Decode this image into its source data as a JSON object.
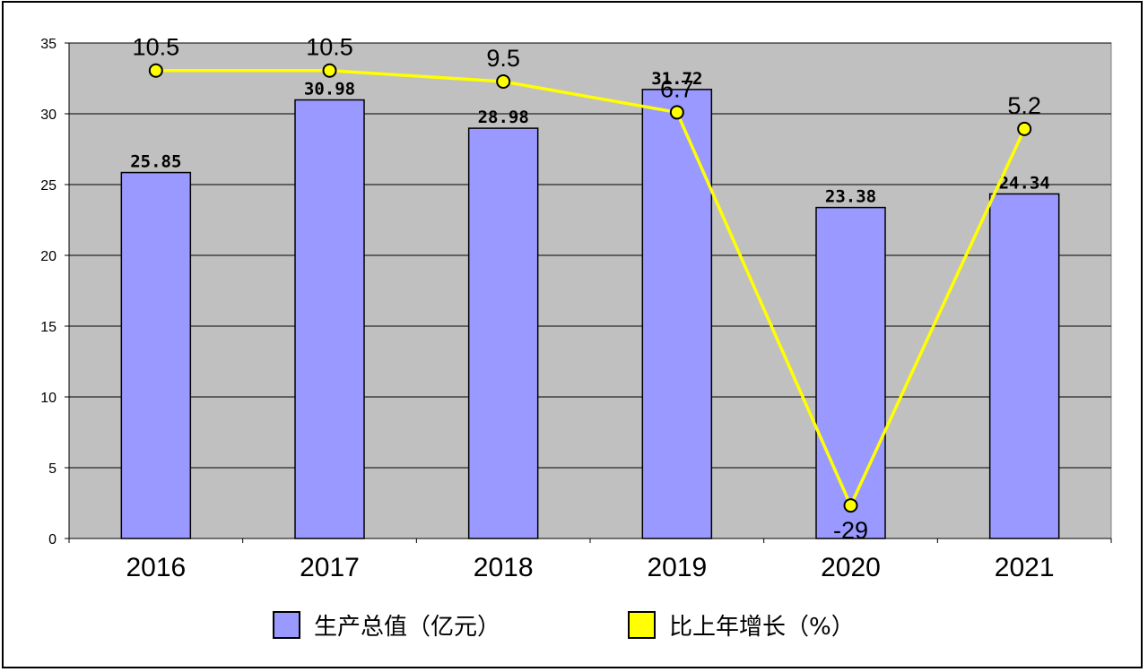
{
  "chart_data": {
    "type": "bar",
    "categories": [
      "2016",
      "2017",
      "2018",
      "2019",
      "2020",
      "2021"
    ],
    "series": [
      {
        "name": "生产总值（亿元）",
        "type": "bar",
        "values": [
          25.85,
          30.98,
          28.98,
          31.72,
          23.38,
          24.34
        ],
        "labels": [
          "25.85",
          "30.98",
          "28.98",
          "31.72",
          "23.38",
          "24.34"
        ],
        "color": "#9999ff"
      },
      {
        "name": "比上年增长（%）",
        "type": "line",
        "values": [
          10.5,
          10.5,
          9.5,
          6.7,
          -29,
          5.2
        ],
        "labels": [
          "10.5",
          "10.5",
          "9.5",
          "6.7",
          "-29",
          "5.2"
        ],
        "color": "#ffff00"
      }
    ],
    "ylim": [
      0,
      35
    ],
    "yticks": [
      "0",
      "5",
      "10",
      "15",
      "20",
      "25",
      "30",
      "35"
    ],
    "plot_background": "#c0c0c0",
    "grid": true,
    "legend_position": "bottom",
    "title": "",
    "xlabel": "",
    "ylabel": ""
  }
}
